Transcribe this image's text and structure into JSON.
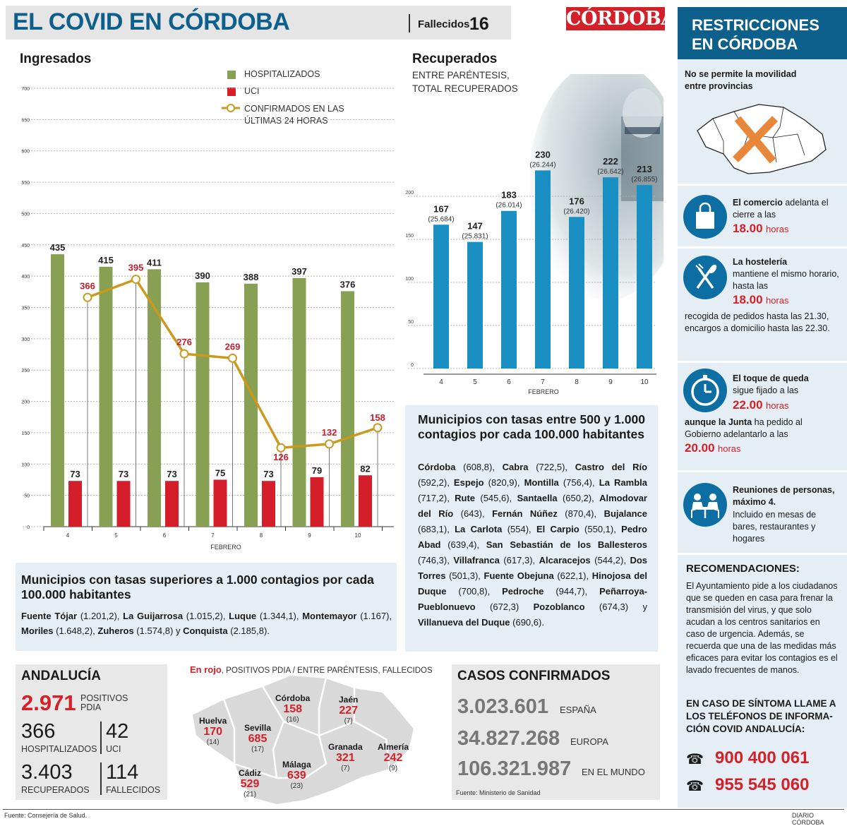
{
  "header": {
    "title": "EL COVID EN CÓRDOBA",
    "fallecidos_label": "Fallecidos",
    "fallecidos_value": "16",
    "logo": "CÓRDOBA"
  },
  "ingresados": {
    "title": "Ingresados",
    "legend": {
      "hosp": "HOSPITALIZADOS",
      "uci": "UCI",
      "conf_1": "CONFIRMADOS EN LAS",
      "conf_2": "ÚLTIMAS 24 HORAS"
    }
  },
  "recuperados": {
    "title": "Recuperados",
    "subtitle_1": "ENTRE PARÉNTESIS,",
    "subtitle_2": "TOTAL RECUPERADOS"
  },
  "chart_data": [
    {
      "type": "bar",
      "title": "Ingresados",
      "xlabel": "FEBRERO",
      "categories": [
        "4",
        "5",
        "6",
        "7",
        "8",
        "9",
        "10"
      ],
      "series": [
        {
          "name": "HOSPITALIZADOS",
          "kind": "bar",
          "color": "#87a054",
          "values": [
            435,
            415,
            411,
            390,
            388,
            397,
            376
          ]
        },
        {
          "name": "UCI",
          "kind": "bar",
          "color": "#d41f2b",
          "values": [
            73,
            73,
            73,
            75,
            73,
            79,
            82
          ]
        },
        {
          "name": "CONFIRMADOS EN LAS ÚLTIMAS 24 HORAS",
          "kind": "line",
          "color": "#c99a1d",
          "values": [
            366,
            395,
            276,
            269,
            126,
            132,
            158
          ]
        }
      ],
      "yticks": [
        0,
        50,
        100,
        150,
        200,
        250,
        300,
        350,
        400,
        450,
        500,
        550,
        600,
        650,
        700
      ],
      "ylim": [
        0,
        700
      ],
      "grid": true
    },
    {
      "type": "bar",
      "title": "Recuperados",
      "subtitle": "ENTRE PARÉNTESIS, TOTAL RECUPERADOS",
      "xlabel": "FEBRERO",
      "categories": [
        "4",
        "5",
        "6",
        "7",
        "8",
        "9",
        "10"
      ],
      "series": [
        {
          "name": "Recuperados",
          "color": "#1a8fc4",
          "values": [
            167,
            147,
            183,
            230,
            176,
            222,
            213
          ],
          "totals": [
            "(25.684)",
            "(25.831)",
            "(26.014)",
            "(26.244)",
            "(26.420)",
            "(26.642)",
            "(26.855)"
          ]
        }
      ],
      "yticks": [
        0,
        50,
        100,
        150,
        200
      ],
      "ylim": [
        0,
        270
      ],
      "grid": true
    }
  ],
  "mun_1000": {
    "title": "Municipios con tasas superiores a 1.000 contagios por cada 100.000 habitantes",
    "items": [
      [
        "Fuente Tójar",
        "(1.201,2),"
      ],
      [
        "La Guijarrosa",
        "(1.015,2),"
      ],
      [
        "Luque",
        "(1.344,1),"
      ],
      [
        "Montemayor",
        "(1.167),"
      ],
      [
        "Moriles",
        "(1.648,2),"
      ],
      [
        "Zuheros",
        "(1.574,8) y"
      ],
      [
        "Conquista",
        "(2.185,8)."
      ]
    ]
  },
  "mun_500": {
    "title": "Municipios con tasas entre 500 y 1.000 contagios por cada 100.000 habitantes",
    "items": [
      [
        "Córdoba",
        "(608,8),"
      ],
      [
        "Cabra",
        "(722,5),"
      ],
      [
        "Castro del Río",
        "(592,2),"
      ],
      [
        "Espejo",
        "(820,9),"
      ],
      [
        "Montilla",
        "(756,4),"
      ],
      [
        "La Rambla",
        "(717,2),"
      ],
      [
        "Rute",
        "(545,6),"
      ],
      [
        "Santaella",
        "(650,2),"
      ],
      [
        "Almodovar del Río",
        "(643),"
      ],
      [
        "Fernán Núñez",
        "(870,4),"
      ],
      [
        "Bujalance",
        "(683,1),"
      ],
      [
        "La Carlota",
        "(554),"
      ],
      [
        "El Carpio",
        "(550,1),"
      ],
      [
        "Pedro Abad",
        "(639,4),"
      ],
      [
        "San Sebastián de los Ballesteros",
        "(746,3),"
      ],
      [
        "Villafranca",
        "(617,3),"
      ],
      [
        "Alcaracejos",
        "(544,2),"
      ],
      [
        "Dos Torres",
        "(501,3),"
      ],
      [
        "Fuente Obejuna",
        "(622,1),"
      ],
      [
        "Hinojosa del Duque",
        "(700,8),"
      ],
      [
        "Pedroche",
        "(944,7),"
      ],
      [
        "Peñarroya-Pueblonuevo",
        "(672,3)"
      ],
      [
        "Pozoblanco",
        "(674,3) y"
      ],
      [
        "Villanueva del Duque",
        "(690,6)."
      ]
    ]
  },
  "andalucia": {
    "title": "ANDALUCÍA",
    "pdia": "2.971",
    "pdia_label_1": "POSITIVOS",
    "pdia_label_2": "PDIA",
    "hosp": "366",
    "hosp_label": "HOSPITALIZADOS",
    "uci": "42",
    "uci_label": "UCI",
    "recup": "3.403",
    "recup_label": "RECUPERADOS",
    "fall": "114",
    "fall_label": "FALLECIDOS"
  },
  "map": {
    "legend_red": "En rojo",
    "legend_rest": ", POSITIVOS PDIA / ENTRE PARÉNTESIS, FALLECIDOS",
    "provinces": [
      {
        "name": "Huelva",
        "pos": "170",
        "deaths": "(14)"
      },
      {
        "name": "Sevilla",
        "pos": "685",
        "deaths": "(17)"
      },
      {
        "name": "Córdoba",
        "pos": "158",
        "deaths": "(16)"
      },
      {
        "name": "Jaén",
        "pos": "227",
        "deaths": "(7)"
      },
      {
        "name": "Granada",
        "pos": "321",
        "deaths": "(7)"
      },
      {
        "name": "Almería",
        "pos": "242",
        "deaths": "(9)"
      },
      {
        "name": "Málaga",
        "pos": "639",
        "deaths": "(23)"
      },
      {
        "name": "Cádiz",
        "pos": "529",
        "deaths": "(21)"
      }
    ]
  },
  "casos": {
    "title": "CASOS CONFIRMADOS",
    "espana": "3.023.601",
    "espana_label": "ESPAÑA",
    "europa": "34.827.268",
    "europa_label": "EUROPA",
    "mundo": "106.321.987",
    "mundo_label": "EN EL MUNDO",
    "source": "Fuente: Ministerio de Sanidad"
  },
  "sidebar": {
    "title_1": "RESTRICCIONES",
    "title_2": "EN CÓRDOBA",
    "movilidad_1": "No se permite la movilidad",
    "movilidad_2": "entre provincias",
    "comercio_b": "El comercio",
    "comercio_t": " adelanta el cierre a las",
    "comercio_h": "18.00",
    "horas": "horas",
    "hosteleria_b": "La hostelería",
    "hosteleria_t": "mantiene el mismo horario, hasta las",
    "hosteleria_h": "18.00",
    "hosteleria_extra": "recogida de pedidos hasta las 21.30, encargos a domicilio hasta las 22.30.",
    "toque_b": "El toque de queda",
    "toque_t": "sigue fijado a las",
    "toque_h": "22.00",
    "toque_extra_b": "aunque la Junta",
    "toque_extra_t": " ha pedido al Gobierno adelantarlo a las",
    "toque_h2": "20.00",
    "reun_b": "Reuniones de personas, máximo 4.",
    "reun_t": "Incluido en mesas de bares, restaurantes y hogares",
    "recom_title": "RECOMENDACIONES:",
    "recom_text": "El Ayuntamiento pide a los ciudadanos que se queden en casa para frenar la transmisión del virus, y que solo acudan a los centros sanitarios en caso de urgencia. Además, se recuerda que una de las medidas más eficaces para evitar los contagios es el lavado frecuentes de manos.",
    "sintoma": "EN CASO DE SÍNTOMA LLAME A LOS TELÉFONOS DE INFORMA-CIÓN COVID ANDALUCÍA:",
    "tel1": "900 400 061",
    "tel2": "955 545 060"
  },
  "footer": {
    "source": "Fuente: Consejería de Salud.",
    "brand": "DIARIO CÓRDOBA"
  }
}
